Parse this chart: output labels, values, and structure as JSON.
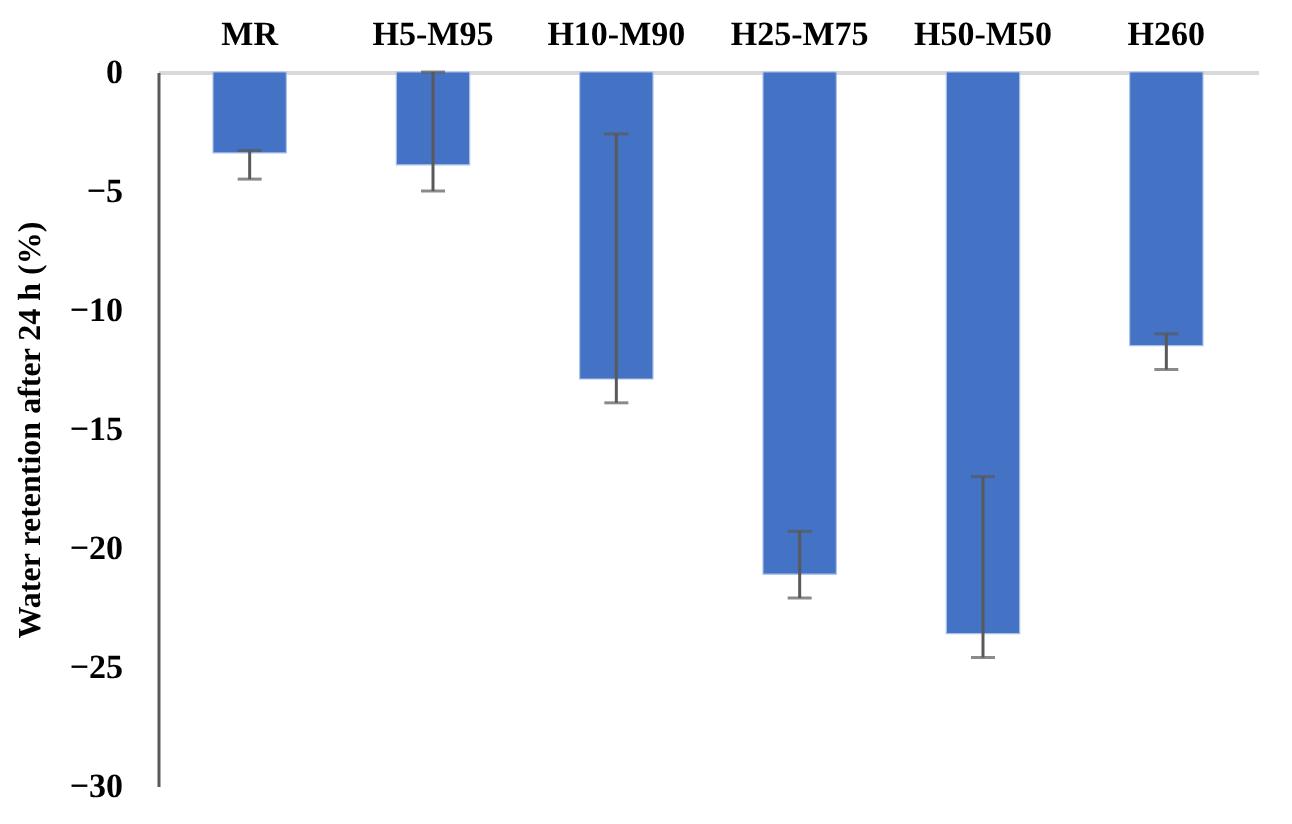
{
  "chart_data": {
    "type": "bar",
    "ylabel": "Water retention after 24 h (%)",
    "categories": [
      "MR",
      "H5-M95",
      "H10-M90",
      "H25-M75",
      "H50-M50",
      "H260"
    ],
    "values": [
      -3.4,
      -3.9,
      -12.9,
      -21.1,
      -23.6,
      -11.5
    ],
    "errors": [
      [
        -4.5,
        -3.3
      ],
      [
        -5.0,
        0
      ],
      [
        -13.9,
        -2.6
      ],
      [
        -22.1,
        -19.3
      ],
      [
        -24.6,
        -17.0
      ],
      [
        -12.5,
        -11.0
      ]
    ],
    "color": "#4472c4",
    "ylim": [
      -30,
      0
    ],
    "yticks": [
      -30,
      -25,
      -20,
      -15,
      -10,
      -5,
      0
    ],
    "grid": false
  }
}
